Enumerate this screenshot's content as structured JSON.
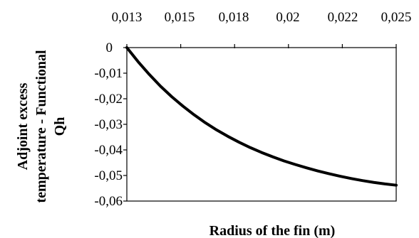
{
  "chart_data": {
    "type": "line",
    "xlabel": "Radius of the fin (m)",
    "ylabel_lines": [
      "Adjoint excess",
      "temperature - Functional",
      "Qh"
    ],
    "x_ticks": [
      "0,013",
      "0,015",
      "0,018",
      "0,02",
      "0,022",
      "0,025"
    ],
    "y_ticks": [
      "0",
      "-0,01",
      "-0,02",
      "-0,03",
      "-0,04",
      "-0,05",
      "-0,06"
    ],
    "xlim": [
      0.013,
      0.025
    ],
    "ylim": [
      -0.06,
      0
    ],
    "x_axis_position": "top",
    "grid": false,
    "legend": false,
    "series": [
      {
        "color": "#000000",
        "x": [
          0.013,
          0.0135,
          0.014,
          0.0145,
          0.015,
          0.0155,
          0.016,
          0.0165,
          0.017,
          0.0175,
          0.018,
          0.0185,
          0.019,
          0.0195,
          0.02,
          0.0205,
          0.021,
          0.0215,
          0.022,
          0.0225,
          0.023,
          0.0235,
          0.024,
          0.0245,
          0.025
        ],
        "y": [
          0,
          -0.0055,
          -0.0105,
          -0.0151,
          -0.0192,
          -0.0229,
          -0.0263,
          -0.0294,
          -0.0322,
          -0.0347,
          -0.037,
          -0.0391,
          -0.041,
          -0.0427,
          -0.0443,
          -0.0457,
          -0.047,
          -0.0482,
          -0.0493,
          -0.0503,
          -0.0512,
          -0.052,
          -0.0527,
          -0.0533,
          -0.0538
        ]
      }
    ]
  }
}
